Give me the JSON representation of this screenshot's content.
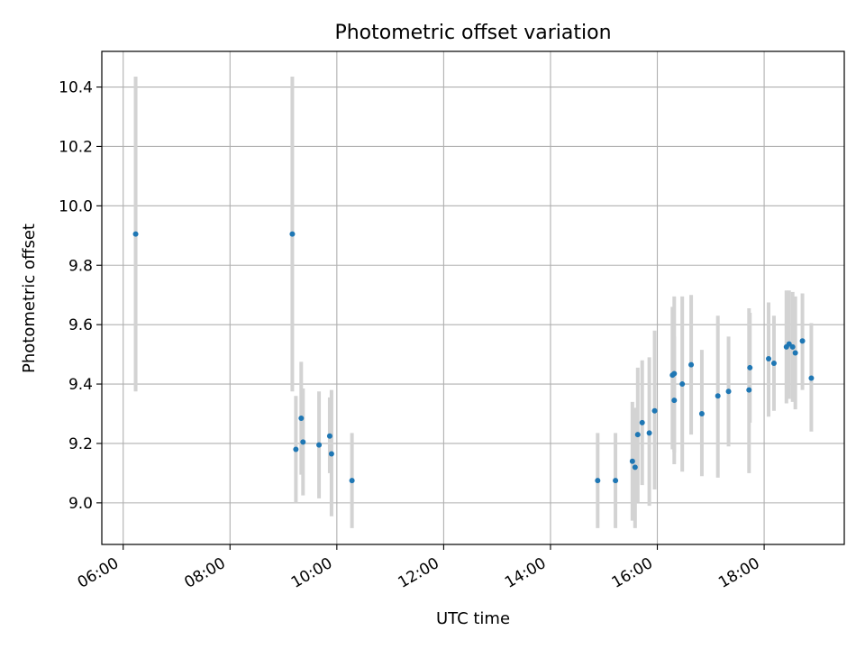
{
  "chart_data": {
    "type": "scatter",
    "title": "Photometric offset variation",
    "xlabel": "UTC time",
    "ylabel": "Photometric offset",
    "xlim": [
      "05:36",
      "19:30"
    ],
    "ylim": [
      8.86,
      10.52
    ],
    "grid": true,
    "x_ticks": [
      "06:00",
      "08:00",
      "10:00",
      "12:00",
      "14:00",
      "16:00",
      "18:00"
    ],
    "y_ticks": [
      "9.0",
      "9.2",
      "9.4",
      "9.6",
      "9.8",
      "10.0",
      "10.2",
      "10.4"
    ],
    "marker_color": "#1f77b4",
    "errorbar_color": "#d3d3d3",
    "points": [
      {
        "x": "06:14",
        "y": 9.905,
        "lo": 9.375,
        "hi": 10.435
      },
      {
        "x": "09:10",
        "y": 9.905,
        "lo": 9.375,
        "hi": 10.435
      },
      {
        "x": "09:14",
        "y": 9.18,
        "lo": 9.0,
        "hi": 9.36
      },
      {
        "x": "09:20",
        "y": 9.285,
        "lo": 9.095,
        "hi": 9.475
      },
      {
        "x": "09:22",
        "y": 9.205,
        "lo": 9.025,
        "hi": 9.385
      },
      {
        "x": "09:40",
        "y": 9.195,
        "lo": 9.015,
        "hi": 9.375
      },
      {
        "x": "09:52",
        "y": 9.225,
        "lo": 9.1,
        "hi": 9.355
      },
      {
        "x": "09:54",
        "y": 9.165,
        "lo": 8.955,
        "hi": 9.38
      },
      {
        "x": "10:17",
        "y": 9.075,
        "lo": 8.915,
        "hi": 9.235
      },
      {
        "x": "14:53",
        "y": 9.075,
        "lo": 8.915,
        "hi": 9.235
      },
      {
        "x": "15:13",
        "y": 9.075,
        "lo": 8.915,
        "hi": 9.235
      },
      {
        "x": "15:32",
        "y": 9.14,
        "lo": 8.94,
        "hi": 9.34
      },
      {
        "x": "15:35",
        "y": 9.12,
        "lo": 8.915,
        "hi": 9.32
      },
      {
        "x": "15:38",
        "y": 9.23,
        "lo": 9.0,
        "hi": 9.455
      },
      {
        "x": "15:43",
        "y": 9.27,
        "lo": 9.06,
        "hi": 9.48
      },
      {
        "x": "15:51",
        "y": 9.235,
        "lo": 8.99,
        "hi": 9.49
      },
      {
        "x": "15:57",
        "y": 9.31,
        "lo": 9.045,
        "hi": 9.58
      },
      {
        "x": "16:17",
        "y": 9.43,
        "lo": 9.18,
        "hi": 9.66
      },
      {
        "x": "16:19",
        "y": 9.345,
        "lo": 9.13,
        "hi": 9.56
      },
      {
        "x": "16:19",
        "y": 9.435,
        "lo": 9.17,
        "hi": 9.695
      },
      {
        "x": "16:28",
        "y": 9.4,
        "lo": 9.105,
        "hi": 9.695
      },
      {
        "x": "16:38",
        "y": 9.465,
        "lo": 9.23,
        "hi": 9.7
      },
      {
        "x": "16:50",
        "y": 9.3,
        "lo": 9.09,
        "hi": 9.515
      },
      {
        "x": "17:08",
        "y": 9.36,
        "lo": 9.085,
        "hi": 9.63
      },
      {
        "x": "17:20",
        "y": 9.375,
        "lo": 9.19,
        "hi": 9.56
      },
      {
        "x": "17:43",
        "y": 9.38,
        "lo": 9.1,
        "hi": 9.655
      },
      {
        "x": "17:44",
        "y": 9.455,
        "lo": 9.27,
        "hi": 9.64
      },
      {
        "x": "18:05",
        "y": 9.485,
        "lo": 9.29,
        "hi": 9.675
      },
      {
        "x": "18:11",
        "y": 9.47,
        "lo": 9.31,
        "hi": 9.63
      },
      {
        "x": "18:25",
        "y": 9.525,
        "lo": 9.335,
        "hi": 9.715
      },
      {
        "x": "18:28",
        "y": 9.535,
        "lo": 9.35,
        "hi": 9.715
      },
      {
        "x": "18:32",
        "y": 9.525,
        "lo": 9.34,
        "hi": 9.71
      },
      {
        "x": "18:35",
        "y": 9.505,
        "lo": 9.315,
        "hi": 9.695
      },
      {
        "x": "18:43",
        "y": 9.545,
        "lo": 9.38,
        "hi": 9.705
      },
      {
        "x": "18:53",
        "y": 9.42,
        "lo": 9.24,
        "hi": 9.605
      }
    ]
  }
}
